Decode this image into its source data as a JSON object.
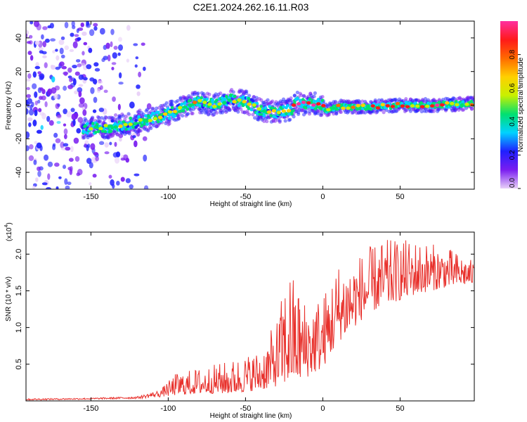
{
  "title": "C2E1.2024.262.16.11.R03",
  "colors": {
    "snr_line": "#e8312c",
    "spec_low": "#7a1ef0",
    "spec_mid": "#00d2ff",
    "spec_high": "#ff1a1a"
  },
  "chart_data": [
    {
      "type": "heatmap",
      "title": "C2E1.2024.262.16.11.R03",
      "xlabel": "Height of straight line (km)",
      "ylabel": "Frequency (Hz)",
      "xlim": [
        -192,
        98
      ],
      "ylim": [
        -50,
        50
      ],
      "xticks": [
        -150,
        -100,
        -50,
        0,
        50
      ],
      "yticks": [
        -40,
        -20,
        0,
        20,
        40
      ],
      "xtick_labels": [
        "-150",
        "-100",
        "-50",
        "0",
        "50"
      ],
      "ytick_labels": [
        "-40",
        "-20",
        "0",
        "20",
        "40"
      ],
      "ridge": {
        "x": [
          -155,
          -140,
          -125,
          -110,
          -100,
          -90,
          -80,
          -70,
          -60,
          -50,
          -40,
          -30,
          -20,
          -17,
          -5,
          0,
          2,
          10,
          30,
          50,
          70,
          98
        ],
        "y": [
          -14,
          -13,
          -11,
          -8,
          -5,
          -1,
          2,
          0,
          3,
          2,
          -3,
          -4,
          -2,
          1,
          1,
          0,
          -3,
          -1,
          -1,
          0,
          0,
          1
        ]
      },
      "colorbar": {
        "label": "Normalized spectral amplitude",
        "range": [
          0,
          1
        ],
        "ticks": [
          0.0,
          0.2,
          0.4,
          0.6,
          0.8
        ],
        "tick_labels": [
          "0.0",
          "0.2",
          "0.4",
          "0.6",
          "0.8"
        ],
        "colors": [
          "#e8d0f8",
          "#7a1ef0",
          "#2020ff",
          "#00d2ff",
          "#00e070",
          "#c8f000",
          "#ffd000",
          "#ff6a00",
          "#ff1a1a",
          "#ff2fa0"
        ]
      }
    },
    {
      "type": "line",
      "xlabel": "Height of straight line (km)",
      "ylabel": "SNR (10 * v/v)",
      "multiplier_base": "(x10",
      "multiplier_exp": "4",
      "multiplier_close": ")",
      "xlim": [
        -192,
        98
      ],
      "ylim": [
        0,
        2.3
      ],
      "xticks": [
        -150,
        -100,
        -50,
        0,
        50
      ],
      "yticks": [
        0.5,
        1.0,
        1.5,
        2.0
      ],
      "xtick_labels": [
        "-150",
        "-100",
        "-50",
        "0",
        "50"
      ],
      "ytick_labels": [
        "0.5",
        "1.0",
        "1.5",
        "2.0"
      ],
      "envelope": {
        "x": [
          -192,
          -150,
          -120,
          -105,
          -95,
          -80,
          -60,
          -40,
          -30,
          -22,
          -12,
          0,
          10,
          20,
          30,
          40,
          60,
          80,
          98
        ],
        "base": [
          0.01,
          0.02,
          0.03,
          0.05,
          0.08,
          0.1,
          0.1,
          0.15,
          0.2,
          0.25,
          0.3,
          0.45,
          0.8,
          1.0,
          1.2,
          1.3,
          1.45,
          1.55,
          1.6
        ],
        "peak": [
          0.03,
          0.04,
          0.06,
          0.15,
          0.38,
          0.45,
          0.55,
          0.7,
          1.1,
          1.85,
          1.4,
          1.45,
          1.9,
          1.95,
          2.1,
          2.2,
          2.2,
          2.1,
          1.9
        ]
      }
    }
  ]
}
